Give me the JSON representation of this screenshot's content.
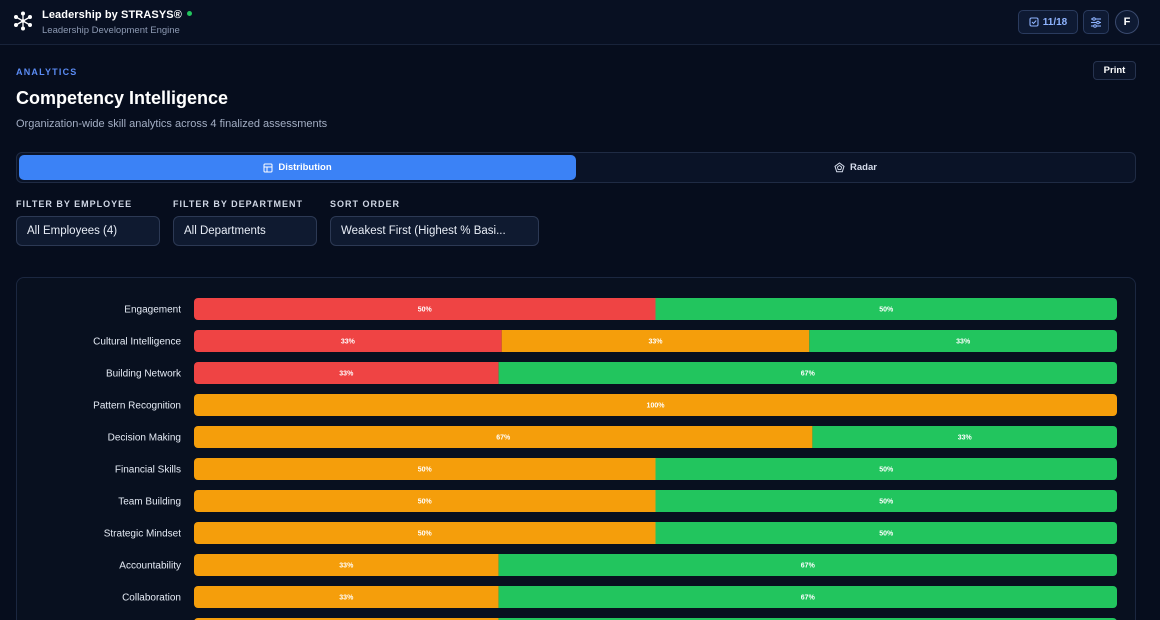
{
  "header": {
    "brand_title": "Leadership by STRASYS®",
    "brand_subtitle": "Leadership Development Engine",
    "progress": "11/18",
    "avatar_initial": "F",
    "status_color": "#22c55e"
  },
  "page": {
    "eyebrow": "ANALYTICS",
    "title": "Competency Intelligence",
    "subtitle": "Organization-wide skill analytics across 4 finalized assessments",
    "print_label": "Print"
  },
  "tabs": [
    {
      "label": "Distribution",
      "icon": "table-icon",
      "active": true
    },
    {
      "label": "Radar",
      "icon": "radar-icon",
      "active": false
    }
  ],
  "filters": [
    {
      "label": "FILTER BY EMPLOYEE",
      "value": "All Employees (4)"
    },
    {
      "label": "FILTER BY DEPARTMENT",
      "value": "All Departments"
    },
    {
      "label": "SORT ORDER",
      "value": "Weakest First (Highest % Basi..."
    }
  ],
  "chart_data": {
    "type": "bar",
    "orientation": "horizontal",
    "stacked": true,
    "percent": true,
    "series_colors": [
      "#ef4444",
      "#f59e0b",
      "#22c55e"
    ],
    "categories": [
      "Engagement",
      "Cultural Intelligence",
      "Building Network",
      "Pattern Recognition",
      "Decision Making",
      "Financial Skills",
      "Team Building",
      "Strategic Mindset",
      "Accountability",
      "Collaboration",
      ""
    ],
    "series": [
      {
        "values": [
          50,
          33,
          33,
          0,
          0,
          0,
          0,
          0,
          0,
          0,
          0
        ]
      },
      {
        "values": [
          0,
          33,
          0,
          100,
          67,
          50,
          50,
          50,
          33,
          33,
          33
        ]
      },
      {
        "values": [
          50,
          33,
          67,
          0,
          33,
          50,
          50,
          50,
          67,
          67,
          67
        ]
      }
    ]
  }
}
